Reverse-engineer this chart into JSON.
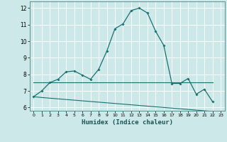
{
  "xlabel": "Humidex (Indice chaleur)",
  "background_color": "#cce8e8",
  "grid_color": "#b0d0d0",
  "line_color": "#1a7070",
  "xlim": [
    -0.5,
    23.5
  ],
  "ylim": [
    5.8,
    12.4
  ],
  "yticks": [
    6,
    7,
    8,
    9,
    10,
    11,
    12
  ],
  "xticks": [
    0,
    1,
    2,
    3,
    4,
    5,
    6,
    7,
    8,
    9,
    10,
    11,
    12,
    13,
    14,
    15,
    16,
    17,
    18,
    19,
    20,
    21,
    22,
    23
  ],
  "curve1_x": [
    0,
    1,
    2,
    3,
    4,
    5,
    6,
    7,
    8,
    9,
    10,
    11,
    12,
    13,
    14,
    15,
    16,
    17,
    18,
    19,
    20,
    21,
    22
  ],
  "curve1_y": [
    6.65,
    7.0,
    7.5,
    7.7,
    8.15,
    8.2,
    7.95,
    7.7,
    8.3,
    9.4,
    10.75,
    11.05,
    11.85,
    12.0,
    11.7,
    10.6,
    9.75,
    7.45,
    7.45,
    7.75,
    6.8,
    7.1,
    6.35
  ],
  "curve2_x": [
    0,
    1,
    2,
    3,
    4,
    5,
    6,
    7,
    8,
    9,
    10,
    11,
    12,
    13,
    14,
    15,
    16,
    17,
    18,
    19,
    20,
    21,
    22
  ],
  "curve2_y": [
    7.5,
    7.5,
    7.5,
    7.5,
    7.5,
    7.5,
    7.5,
    7.5,
    7.5,
    7.5,
    7.5,
    7.5,
    7.5,
    7.5,
    7.5,
    7.5,
    7.5,
    7.5,
    7.5,
    7.5,
    7.5,
    7.5,
    7.5
  ],
  "curve3_x": [
    0,
    1,
    2,
    3,
    4,
    5,
    6,
    7,
    8,
    9,
    10,
    11,
    12,
    13,
    14,
    15,
    16,
    17,
    18,
    19,
    20,
    21,
    22,
    23
  ],
  "curve3_y": [
    6.65,
    6.6,
    6.56,
    6.52,
    6.48,
    6.44,
    6.4,
    6.36,
    6.32,
    6.28,
    6.24,
    6.2,
    6.16,
    6.12,
    6.08,
    6.04,
    6.0,
    5.96,
    5.92,
    5.88,
    5.84,
    5.8,
    5.76,
    5.7
  ]
}
